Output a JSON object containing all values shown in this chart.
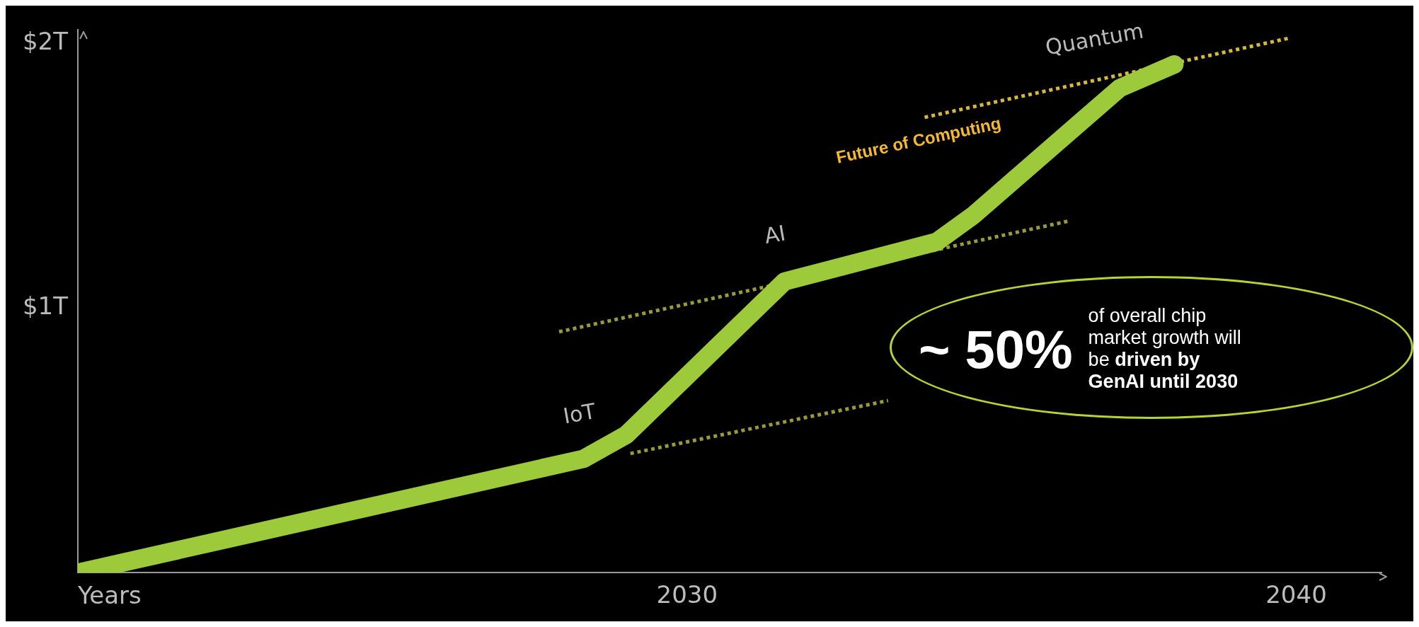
{
  "chart_data": {
    "type": "line",
    "xlabel": "Years",
    "xlim": [
      2020,
      2041.4
    ],
    "xticks": [
      2030,
      2040
    ],
    "ylim": [
      0,
      2.05
    ],
    "yticks": [
      {
        "value": 1,
        "label": "$1T"
      },
      {
        "value": 2,
        "label": "$2T"
      }
    ],
    "grid": false,
    "legend": false,
    "series": [
      {
        "x": [
          2020,
          2028.3,
          2029.0,
          2031.6,
          2034.1,
          2034.7,
          2037.1,
          2038.0
        ],
        "values": [
          0,
          0.43,
          0.52,
          1.1,
          1.25,
          1.35,
          1.83,
          1.92
        ],
        "color": "#9cca3a",
        "line_style": "solid"
      },
      {
        "x": [
          2029.07,
          2033.3
        ],
        "values": [
          0.45,
          0.65
        ],
        "color": "#9a9a3a",
        "line_style": "dotted"
      },
      {
        "x": [
          2027.9,
          2036.3
        ],
        "values": [
          0.91,
          1.33
        ],
        "color": "#9a9a3a",
        "line_style": "dotted"
      },
      {
        "x": [
          2033.9,
          2039.9
        ],
        "values": [
          1.72,
          2.02
        ],
        "color": "#d8b83a",
        "line_style": "dotted"
      }
    ],
    "annotations": [
      "IoT",
      "AI",
      "Quantum",
      "Future of Computing",
      "~ 50%",
      "of overall chip market growth will be",
      "driven by GenAI until 2030"
    ]
  }
}
